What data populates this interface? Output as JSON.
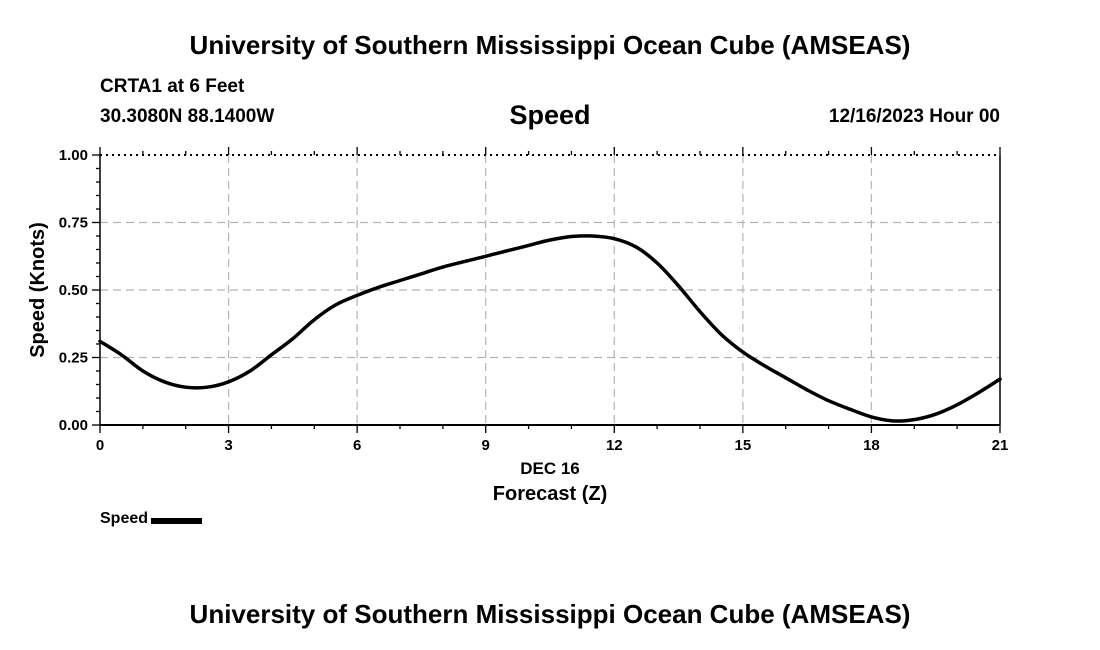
{
  "header": {
    "title": "University of Southern Mississippi Ocean Cube (AMSEAS)",
    "station": "CRTA1 at 6 Feet",
    "coords": "30.3080N  88.1400W",
    "date": "12/16/2023 Hour 00"
  },
  "footer": {
    "title": "University of Southern Mississippi Ocean Cube (AMSEAS)"
  },
  "chart_data": {
    "type": "line",
    "title": "Speed",
    "xlabel": "Forecast (Z)",
    "xlabel_date": "DEC 16",
    "ylabel": "Speed (Knots)",
    "xlim": [
      0,
      21
    ],
    "ylim": [
      0,
      1
    ],
    "xticks": [
      0,
      3,
      6,
      9,
      12,
      15,
      18,
      21
    ],
    "xtick_labels": [
      "0",
      "3",
      "6",
      "9",
      "12",
      "15",
      "18",
      "21"
    ],
    "yticks": [
      0,
      0.25,
      0.5,
      0.75,
      1.0
    ],
    "ytick_labels": [
      "0.00",
      "0.25",
      "0.50",
      "0.75",
      "1.00"
    ],
    "grid": true,
    "legend": "bottom-left",
    "series": [
      {
        "name": "Speed",
        "color": "#000000",
        "x": [
          0,
          0.5,
          1,
          1.5,
          2,
          2.5,
          3,
          3.5,
          4,
          4.5,
          5,
          5.5,
          6,
          6.5,
          7,
          7.5,
          8,
          8.5,
          9,
          9.5,
          10,
          10.5,
          11,
          11.5,
          12,
          12.5,
          13,
          13.5,
          14,
          14.5,
          15,
          15.5,
          16,
          16.5,
          17,
          17.5,
          18,
          18.5,
          19,
          19.5,
          20,
          20.5,
          21
        ],
        "y": [
          0.31,
          0.26,
          0.2,
          0.16,
          0.14,
          0.14,
          0.16,
          0.2,
          0.26,
          0.32,
          0.39,
          0.445,
          0.48,
          0.51,
          0.535,
          0.56,
          0.585,
          0.605,
          0.625,
          0.645,
          0.665,
          0.685,
          0.698,
          0.7,
          0.69,
          0.66,
          0.6,
          0.515,
          0.42,
          0.335,
          0.27,
          0.22,
          0.175,
          0.13,
          0.09,
          0.058,
          0.03,
          0.015,
          0.02,
          0.04,
          0.075,
          0.12,
          0.17
        ]
      }
    ]
  }
}
